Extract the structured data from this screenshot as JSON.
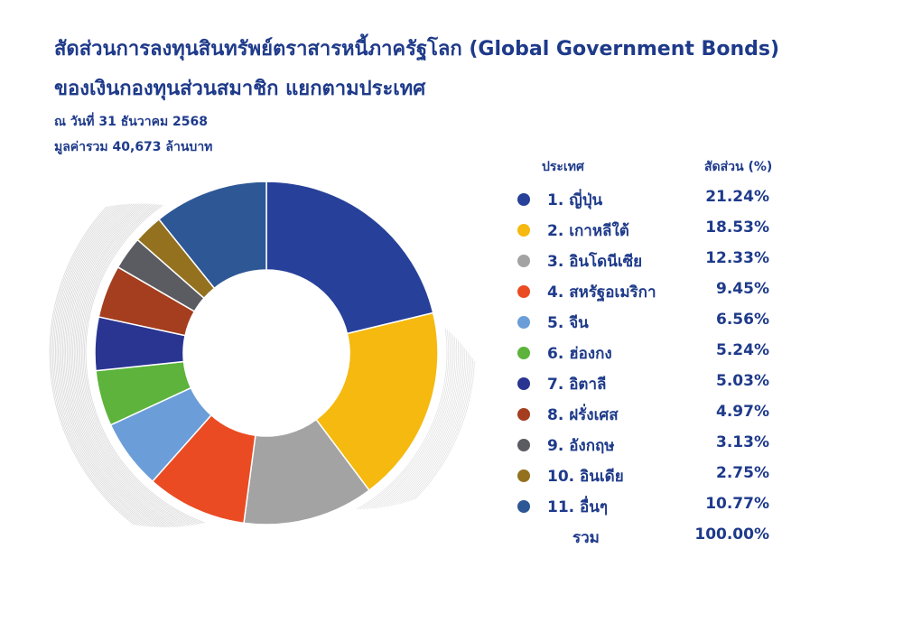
{
  "title_line1": "สัดส่วนการลงทุนสินทรัพย์ตราสารหนี้ภาครัฐโลก (Global Government Bonds)",
  "title_line2": "ของเงินกองทุนส่วนสมาชิก แยกตามประเทศ",
  "subtitle_date": "ณ วันที่ 31 ธันวาคม 2568",
  "subtitle_total": "มูลค่ารวม 40,673 ล้านบาท",
  "legend": {
    "col_country": "ประเทศ",
    "col_share": "สัดส่วน (%)",
    "total_label": "รวม",
    "total_value": "100.00%"
  },
  "chart_data": {
    "type": "pie",
    "variant": "donut",
    "categories": [
      "ญี่ปุ่น",
      "เกาหลีใต้",
      "อินโดนีเซีย",
      "สหรัฐอเมริกา",
      "จีน",
      "ฮ่องกง",
      "อิตาลี",
      "ฝรั่งเศส",
      "อังกฤษ",
      "อินเดีย",
      "อื่นๆ"
    ],
    "values": [
      21.24,
      18.53,
      12.33,
      9.45,
      6.56,
      5.24,
      5.03,
      4.97,
      3.13,
      2.75,
      10.77
    ],
    "value_labels": [
      "21.24%",
      "18.53%",
      "12.33%",
      "9.45%",
      "6.56%",
      "5.24%",
      "5.03%",
      "4.97%",
      "3.13%",
      "2.75%",
      "10.77%"
    ],
    "item_labels": [
      "1.  ญี่ปุ่น",
      "2.  เกาหลีใต้",
      "3.  อินโดนีเซีย",
      "4.  สหรัฐอเมริกา",
      "5.  จีน",
      "6.  ฮ่องกง",
      "7.  อิตาลี",
      "8.  ฝรั่งเศส",
      "9.  อังกฤษ",
      "10. อินเดีย",
      "11. อื่นๆ"
    ],
    "colors": [
      "#27419a",
      "#f5b90f",
      "#a3a3a3",
      "#ea4b23",
      "#6b9ed9",
      "#5db33b",
      "#2a3592",
      "#a43e1f",
      "#5a5c61",
      "#94711f",
      "#2d5795"
    ],
    "legend_position": "right"
  }
}
